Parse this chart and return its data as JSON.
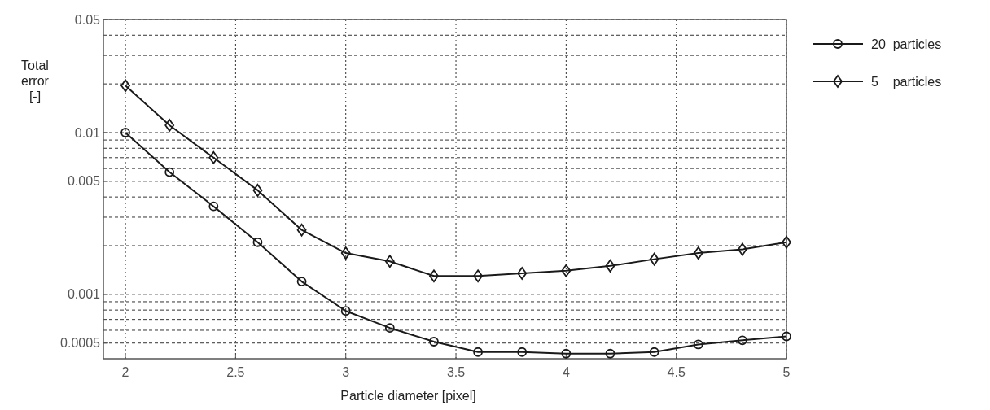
{
  "chart_data": {
    "type": "line",
    "xlabel": "Particle diameter [pixel]",
    "ylabel": "Total error [-]",
    "log": "y",
    "xlim": [
      1.9,
      5
    ],
    "xticks": [
      2,
      2.5,
      3,
      3.5,
      4,
      4.5,
      5
    ],
    "ylim": [
      0.0004,
      0.05
    ],
    "yticks": [
      0.0005,
      {
        "value": 0.0006,
        "label": null
      },
      {
        "value": 0.0007,
        "label": null
      },
      {
        "value": 0.0008,
        "label": null
      },
      {
        "value": 0.0009,
        "label": null
      },
      0.001,
      {
        "value": 0.002,
        "label": null
      },
      {
        "value": 0.003,
        "label": null
      },
      {
        "value": 0.004,
        "label": null
      },
      0.005,
      {
        "value": 0.006,
        "label": null
      },
      {
        "value": 0.007,
        "label": null
      },
      {
        "value": 0.008,
        "label": null
      },
      {
        "value": 0.009,
        "label": null
      },
      0.01,
      {
        "value": 0.02,
        "label": null
      },
      {
        "value": 0.03,
        "label": null
      },
      {
        "value": 0.04,
        "label": null
      },
      0.05
    ],
    "grid": true,
    "legend": "top right",
    "line_style": "solid",
    "x": [
      2,
      2.2,
      2.4,
      2.6,
      2.8,
      3,
      3.2,
      3.4,
      3.6,
      3.8,
      4,
      4.2,
      4.4,
      4.6,
      4.8,
      5
    ],
    "series": [
      {
        "name": "20  particles",
        "color": "#1a1a1a",
        "marker": "circle",
        "values": [
          0.01,
          0.0057,
          0.0035,
          0.0021,
          0.0012,
          0.00079,
          0.00062,
          0.00051,
          0.00044,
          0.00044,
          0.00043,
          0.00043,
          0.00044,
          0.00049,
          0.00052,
          0.00055
        ]
      },
      {
        "name": "5    particles",
        "color": "#1a1a1a",
        "marker": "diamond",
        "values": [
          0.0195,
          0.0111,
          0.007,
          0.0044,
          0.0025,
          0.0018,
          0.0016,
          0.0013,
          0.0013,
          0.00135,
          0.0014,
          0.0015,
          0.00165,
          0.0018,
          0.0019,
          0.0021
        ]
      }
    ]
  }
}
